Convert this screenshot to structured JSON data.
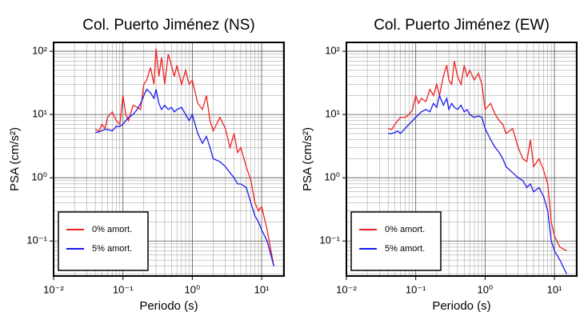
{
  "chart_data": [
    {
      "type": "line",
      "title": "Col. Puerto Jiménez (NS)",
      "x_label": "Periodo (s)",
      "y_label": "PSA (cm/s²)",
      "xscale": "log",
      "yscale": "log",
      "grid": true,
      "legend": "lower left",
      "xlim": [
        0.01,
        21
      ],
      "ylim": [
        0.028,
        138
      ],
      "xticks": [
        {
          "value": 0.01,
          "label": "10⁻²"
        },
        {
          "value": 0.1,
          "label": "10⁻¹"
        },
        {
          "value": 1,
          "label": "10⁰"
        },
        {
          "value": 10,
          "label": "10¹"
        }
      ],
      "yticks": [
        {
          "value": 0.1,
          "label": "10⁻¹"
        },
        {
          "value": 1,
          "label": "10⁰"
        },
        {
          "value": 10,
          "label": "10¹"
        },
        {
          "value": 100,
          "label": "10²"
        }
      ],
      "x": [
        0.04,
        0.045,
        0.05,
        0.055,
        0.06,
        0.07,
        0.08,
        0.09,
        0.1,
        0.11,
        0.12,
        0.14,
        0.16,
        0.18,
        0.2,
        0.22,
        0.25,
        0.28,
        0.3,
        0.33,
        0.36,
        0.4,
        0.45,
        0.5,
        0.55,
        0.6,
        0.7,
        0.8,
        0.9,
        1.0,
        1.2,
        1.4,
        1.6,
        1.8,
        2.0,
        2.5,
        3.0,
        3.5,
        4.0,
        4.5,
        5,
        6,
        7,
        8,
        9,
        10,
        12,
        15
      ],
      "series": [
        {
          "name": "0% amort.",
          "color": "#ee2222",
          "values": [
            5.8,
            5.5,
            7,
            6,
            9,
            11,
            8,
            7,
            20,
            10,
            8,
            14,
            13,
            12,
            30,
            35,
            55,
            30,
            110,
            40,
            80,
            30,
            90,
            60,
            40,
            60,
            30,
            50,
            30,
            35,
            15,
            12,
            20,
            8,
            5.5,
            9,
            6,
            3,
            5,
            2.5,
            3,
            1.5,
            0.9,
            0.4,
            0.3,
            0.35,
            0.15,
            0.04
          ]
        },
        {
          "name": "5% amort.",
          "color": "#1a1aee",
          "values": [
            5.2,
            5.3,
            5.6,
            5.8,
            5.8,
            5.5,
            6.5,
            6.5,
            7,
            8,
            9,
            10,
            12,
            15,
            20,
            25,
            22,
            18,
            25,
            15,
            12,
            14,
            12,
            13,
            11,
            12,
            13,
            10,
            8,
            10,
            5,
            3.5,
            4.5,
            3,
            2,
            1.8,
            1.5,
            1.2,
            1,
            0.8,
            0.8,
            0.7,
            0.4,
            0.25,
            0.2,
            0.15,
            0.1,
            0.04
          ]
        }
      ]
    },
    {
      "type": "line",
      "title": "Col. Puerto Jiménez (EW)",
      "x_label": "Periodo (s)",
      "y_label": "PSA (cm/s²)",
      "xscale": "log",
      "yscale": "log",
      "grid": true,
      "legend": "lower left",
      "xlim": [
        0.01,
        21
      ],
      "ylim": [
        0.028,
        138
      ],
      "xticks": [
        {
          "value": 0.01,
          "label": "10⁻²"
        },
        {
          "value": 0.1,
          "label": "10⁻¹"
        },
        {
          "value": 1,
          "label": "10⁰"
        },
        {
          "value": 10,
          "label": "10¹"
        }
      ],
      "yticks": [
        {
          "value": 0.1,
          "label": "10⁻¹"
        },
        {
          "value": 1,
          "label": "10⁰"
        },
        {
          "value": 10,
          "label": "10¹"
        },
        {
          "value": 100,
          "label": "10²"
        }
      ],
      "x": [
        0.04,
        0.045,
        0.05,
        0.055,
        0.06,
        0.07,
        0.08,
        0.09,
        0.1,
        0.11,
        0.12,
        0.14,
        0.16,
        0.18,
        0.2,
        0.22,
        0.25,
        0.28,
        0.3,
        0.33,
        0.36,
        0.4,
        0.45,
        0.5,
        0.55,
        0.6,
        0.7,
        0.8,
        0.9,
        1.0,
        1.2,
        1.4,
        1.6,
        1.8,
        2.0,
        2.5,
        3.0,
        3.5,
        4.0,
        4.5,
        5,
        6,
        7,
        8,
        9,
        10,
        12,
        15
      ],
      "series": [
        {
          "name": "0% amort.",
          "color": "#ee2222",
          "values": [
            6,
            5.8,
            7,
            8,
            9,
            9,
            10,
            12,
            20,
            15,
            18,
            16,
            25,
            20,
            30,
            20,
            40,
            60,
            35,
            30,
            70,
            40,
            30,
            60,
            40,
            50,
            35,
            45,
            30,
            12,
            15,
            10,
            8,
            7,
            5,
            6,
            3,
            2,
            1.8,
            4,
            1.5,
            2,
            1.3,
            0.8,
            0.2,
            0.12,
            0.08,
            0.07
          ]
        },
        {
          "name": "5% amort.",
          "color": "#1a1aee",
          "values": [
            5,
            5,
            5.2,
            5.5,
            5,
            6,
            7,
            8,
            9,
            10,
            11,
            12,
            11,
            15,
            13,
            20,
            14,
            18,
            12,
            15,
            13,
            12,
            14,
            11,
            12,
            10,
            9,
            9.5,
            9,
            6,
            4,
            3,
            2.5,
            2,
            1.5,
            1.2,
            1,
            0.9,
            0.7,
            0.8,
            0.6,
            0.7,
            0.5,
            0.3,
            0.1,
            0.07,
            0.05,
            0.03
          ]
        }
      ]
    }
  ]
}
